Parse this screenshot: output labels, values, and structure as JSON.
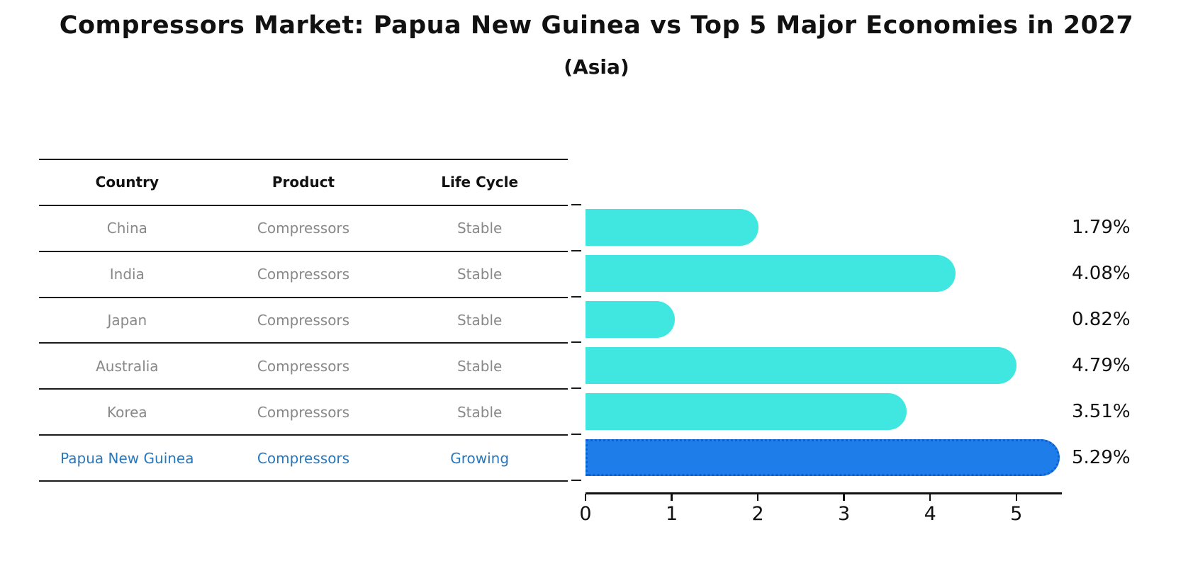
{
  "title": "Compressors Market: Papua New Guinea vs Top 5 Major Economies in 2027",
  "subtitle": "(Asia)",
  "table": {
    "headers": [
      "Country",
      "Product",
      "Life Cycle"
    ],
    "rows": [
      {
        "country": "China",
        "product": "Compressors",
        "life_cycle": "Stable",
        "highlight": false
      },
      {
        "country": "India",
        "product": "Compressors",
        "life_cycle": "Stable",
        "highlight": false
      },
      {
        "country": "Japan",
        "product": "Compressors",
        "life_cycle": "Stable",
        "highlight": false
      },
      {
        "country": "Australia",
        "product": "Compressors",
        "life_cycle": "Stable",
        "highlight": false
      },
      {
        "country": "Korea",
        "product": "Compressors",
        "life_cycle": "Stable",
        "highlight": false
      },
      {
        "country": "Papua New Guinea",
        "product": "Compressors",
        "life_cycle": "Growing",
        "highlight": true
      }
    ]
  },
  "chart_data": {
    "type": "bar",
    "orientation": "horizontal",
    "title": "Compressors Market: Papua New Guinea vs Top 5 Major Economies in 2027 (Asia)",
    "categories": [
      "China",
      "India",
      "Japan",
      "Australia",
      "Korea",
      "Papua New Guinea"
    ],
    "values": [
      1.79,
      4.08,
      0.82,
      4.79,
      3.51,
      5.29
    ],
    "value_labels": [
      "1.79%",
      "4.08%",
      "0.82%",
      "4.79%",
      "3.51%",
      "5.29%"
    ],
    "x_ticks": [
      0,
      1,
      2,
      3,
      4,
      5
    ],
    "xlim": [
      0,
      5.55
    ],
    "xlabel": "",
    "ylabel": "",
    "grid": false,
    "legend": false,
    "bar_color": "#40E7E0",
    "highlight_color": "#1E7DE8",
    "highlight_border_color": "#0C5FD4",
    "highlight_index": 5,
    "axis_color": "#111111",
    "text_color": "#111111",
    "row_text_color": "#888888",
    "highlight_text_color": "#2878BE"
  }
}
